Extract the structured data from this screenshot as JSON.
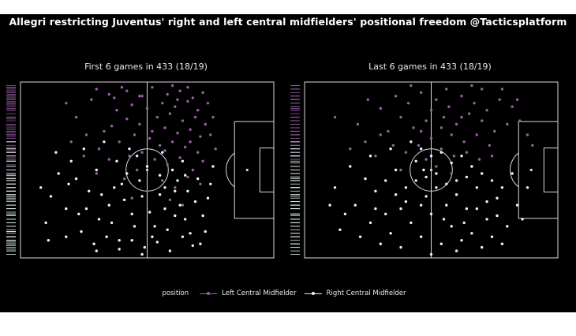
{
  "colors": {
    "background": "#000000",
    "pitch_lines": "#d9d9d9",
    "left_cm": "#9b5fa8",
    "right_cm": "#e6f7ee",
    "text": "#ffffff"
  },
  "chart_data": {
    "type": "scatter",
    "title": "Allegri restricting Juventus' right and left central midfielders' positional freedom @Tacticsplatform",
    "legend_title": "position",
    "legend_placement": "bottom-center",
    "grid": false,
    "series": [
      {
        "name": "Left Central Midfielder",
        "color": "#9b5fa8"
      },
      {
        "name": "Right Central Midfielder",
        "color": "#e6f7ee"
      }
    ],
    "xlim": [
      0,
      100
    ],
    "ylim": [
      0,
      100
    ],
    "panels": [
      {
        "subtitle": "First 6 games in 433 (18/19)",
        "points": {
          "Left Central Midfielder": [
            [
              30,
              96
            ],
            [
              35,
              93
            ],
            [
              42,
              95
            ],
            [
              47,
              92
            ],
            [
              52,
              97
            ],
            [
              58,
              93
            ],
            [
              63,
              95
            ],
            [
              68,
              91
            ],
            [
              72,
              94
            ],
            [
              56,
              88
            ],
            [
              61,
              86
            ],
            [
              66,
              89
            ],
            [
              70,
              84
            ],
            [
              44,
              87
            ],
            [
              38,
              84
            ],
            [
              50,
              85
            ],
            [
              54,
              80
            ],
            [
              59,
              82
            ],
            [
              64,
              78
            ],
            [
              69,
              80
            ],
            [
              73,
              76
            ],
            [
              47,
              76
            ],
            [
              42,
              79
            ],
            [
              36,
              75
            ],
            [
              57,
              74
            ],
            [
              62,
              71
            ],
            [
              67,
              73
            ],
            [
              71,
              69
            ],
            [
              51,
              68
            ],
            [
              45,
              70
            ],
            [
              39,
              66
            ],
            [
              33,
              72
            ],
            [
              55,
              64
            ],
            [
              60,
              66
            ],
            [
              65,
              63
            ],
            [
              70,
              60
            ],
            [
              48,
              60
            ],
            [
              43,
              58
            ],
            [
              74,
              88
            ],
            [
              76,
              80
            ],
            [
              22,
              80
            ],
            [
              26,
              70
            ],
            [
              31,
              62
            ],
            [
              53,
              56
            ],
            [
              58,
              53
            ],
            [
              63,
              57
            ],
            [
              68,
              50
            ],
            [
              72,
              55
            ],
            [
              46,
              50
            ],
            [
              41,
              45
            ],
            [
              56,
              44
            ],
            [
              61,
              40
            ],
            [
              66,
              46
            ],
            [
              71,
              42
            ],
            [
              50,
              38
            ],
            [
              44,
              34
            ],
            [
              59,
              33
            ],
            [
              64,
              30
            ],
            [
              35,
              56
            ],
            [
              30,
              48
            ],
            [
              25,
              58
            ],
            [
              20,
              66
            ],
            [
              18,
              88
            ],
            [
              28,
              90
            ],
            [
              40,
              97
            ],
            [
              60,
              98
            ],
            [
              66,
              97
            ],
            [
              75,
              70
            ],
            [
              77,
              62
            ],
            [
              48,
              92
            ],
            [
              62,
              90
            ],
            [
              57,
              61
            ],
            [
              52,
              72
            ],
            [
              67,
              66
            ],
            [
              37,
              91
            ]
          ],
          "Right Central Midfielder": [
            [
              12,
              35
            ],
            [
              18,
              28
            ],
            [
              22,
              45
            ],
            [
              27,
              38
            ],
            [
              31,
              22
            ],
            [
              35,
              30
            ],
            [
              40,
              42
            ],
            [
              44,
              25
            ],
            [
              48,
              35
            ],
            [
              53,
              18
            ],
            [
              57,
              28
            ],
            [
              61,
              38
            ],
            [
              65,
              22
            ],
            [
              69,
              32
            ],
            [
              73,
              15
            ],
            [
              24,
              15
            ],
            [
              29,
              8
            ],
            [
              34,
              12
            ],
            [
              39,
              5
            ],
            [
              44,
              10
            ],
            [
              49,
              6
            ],
            [
              54,
              9
            ],
            [
              59,
              4
            ],
            [
              64,
              12
            ],
            [
              68,
              7
            ],
            [
              72,
              24
            ],
            [
              38,
              55
            ],
            [
              42,
              48
            ],
            [
              46,
              58
            ],
            [
              50,
              52
            ],
            [
              55,
              47
            ],
            [
              60,
              50
            ],
            [
              64,
              55
            ],
            [
              20,
              55
            ],
            [
              25,
              62
            ],
            [
              30,
              50
            ],
            [
              15,
              48
            ],
            [
              10,
              20
            ],
            [
              8,
              40
            ],
            [
              14,
              60
            ],
            [
              33,
              66
            ],
            [
              56,
              60
            ],
            [
              62,
              44
            ],
            [
              66,
              38
            ],
            [
              70,
              45
            ],
            [
              74,
              34
            ],
            [
              76,
              52
            ],
            [
              45,
              18
            ],
            [
              51,
              26
            ],
            [
              47,
              44
            ],
            [
              36,
              20
            ],
            [
              41,
              33
            ],
            [
              58,
              16
            ],
            [
              63,
              30
            ],
            [
              67,
              14
            ],
            [
              71,
              8
            ],
            [
              26,
              28
            ],
            [
              32,
              36
            ],
            [
              19,
              42
            ],
            [
              23,
              25
            ],
            [
              55,
              36
            ],
            [
              52,
              12
            ],
            [
              43,
              62
            ],
            [
              37,
              40
            ],
            [
              61,
              24
            ],
            [
              39,
              10
            ],
            [
              48,
              2
            ],
            [
              57,
              40
            ],
            [
              65,
              47
            ],
            [
              30,
              4
            ],
            [
              18,
              12
            ],
            [
              11,
              10
            ],
            [
              75,
              42
            ]
          ]
        }
      },
      {
        "subtitle": "Last 6 games in 433 (18/19)",
        "points": {
          "Left Central Midfielder": [
            [
              25,
              90
            ],
            [
              30,
              85
            ],
            [
              36,
              92
            ],
            [
              41,
              88
            ],
            [
              46,
              94
            ],
            [
              52,
              90
            ],
            [
              57,
              86
            ],
            [
              62,
              92
            ],
            [
              67,
              88
            ],
            [
              72,
              84
            ],
            [
              77,
              90
            ],
            [
              82,
              86
            ],
            [
              55,
              80
            ],
            [
              60,
              76
            ],
            [
              65,
              82
            ],
            [
              70,
              78
            ],
            [
              75,
              72
            ],
            [
              80,
              76
            ],
            [
              48,
              78
            ],
            [
              43,
              74
            ],
            [
              38,
              80
            ],
            [
              33,
              72
            ],
            [
              58,
              70
            ],
            [
              63,
              66
            ],
            [
              68,
              70
            ],
            [
              73,
              64
            ],
            [
              50,
              68
            ],
            [
              45,
              64
            ],
            [
              40,
              60
            ],
            [
              54,
              62
            ],
            [
              59,
              58
            ],
            [
              64,
              60
            ],
            [
              69,
              56
            ],
            [
              35,
              64
            ],
            [
              30,
              70
            ],
            [
              21,
              76
            ],
            [
              18,
              62
            ],
            [
              12,
              80
            ],
            [
              85,
              78
            ],
            [
              88,
              70
            ],
            [
              90,
              64
            ],
            [
              84,
              90
            ],
            [
              78,
              96
            ],
            [
              42,
              98
            ],
            [
              56,
              96
            ],
            [
              66,
              98
            ],
            [
              50,
              84
            ],
            [
              62,
              80
            ],
            [
              74,
              58
            ],
            [
              28,
              58
            ],
            [
              48,
              56
            ],
            [
              52,
              52
            ],
            [
              66,
              52
            ],
            [
              38,
              50
            ],
            [
              58,
              48
            ],
            [
              24,
              66
            ],
            [
              70,
              96
            ],
            [
              46,
              72
            ],
            [
              54,
              74
            ]
          ],
          "Right Central Midfielder": [
            [
              20,
              30
            ],
            [
              24,
              45
            ],
            [
              28,
              38
            ],
            [
              32,
              25
            ],
            [
              36,
              50
            ],
            [
              40,
              40
            ],
            [
              44,
              55
            ],
            [
              48,
              35
            ],
            [
              52,
              48
            ],
            [
              56,
              30
            ],
            [
              60,
              44
            ],
            [
              64,
              28
            ],
            [
              68,
              40
            ],
            [
              72,
              22
            ],
            [
              76,
              34
            ],
            [
              80,
              18
            ],
            [
              84,
              30
            ],
            [
              42,
              20
            ],
            [
              46,
              12
            ],
            [
              50,
              25
            ],
            [
              54,
              8
            ],
            [
              58,
              18
            ],
            [
              62,
              10
            ],
            [
              66,
              14
            ],
            [
              70,
              6
            ],
            [
              74,
              12
            ],
            [
              78,
              8
            ],
            [
              38,
              28
            ],
            [
              34,
              14
            ],
            [
              30,
              8
            ],
            [
              26,
              20
            ],
            [
              22,
              12
            ],
            [
              16,
              25
            ],
            [
              12,
              40
            ],
            [
              18,
              52
            ],
            [
              26,
              58
            ],
            [
              34,
              62
            ],
            [
              42,
              66
            ],
            [
              46,
              62
            ],
            [
              50,
              58
            ],
            [
              54,
              60
            ],
            [
              58,
              54
            ],
            [
              62,
              58
            ],
            [
              66,
              52
            ],
            [
              70,
              48
            ],
            [
              74,
              44
            ],
            [
              78,
              40
            ],
            [
              82,
              48
            ],
            [
              86,
              22
            ],
            [
              44,
              44
            ],
            [
              48,
              46
            ],
            [
              52,
              40
            ],
            [
              56,
              42
            ],
            [
              60,
              36
            ],
            [
              64,
              46
            ],
            [
              36,
              36
            ],
            [
              32,
              44
            ],
            [
              40,
              32
            ],
            [
              28,
              28
            ],
            [
              46,
              30
            ],
            [
              50,
              2
            ],
            [
              60,
              4
            ],
            [
              68,
              28
            ],
            [
              72,
              32
            ],
            [
              76,
              24
            ],
            [
              14,
              16
            ],
            [
              10,
              30
            ],
            [
              38,
              6
            ],
            [
              88,
              40
            ],
            [
              55,
              22
            ],
            [
              47,
              50
            ],
            [
              63,
              20
            ]
          ]
        }
      }
    ]
  }
}
